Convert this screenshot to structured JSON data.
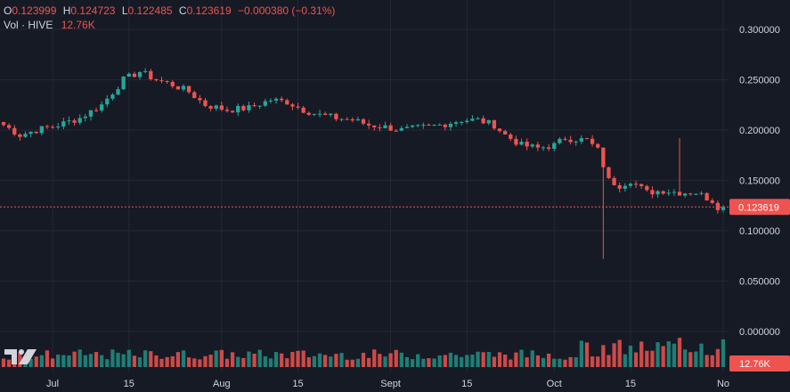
{
  "legend": {
    "open_label": "O",
    "open_value": "0.123999",
    "high_label": "H",
    "high_value": "0.124723",
    "low_label": "L",
    "low_value": "0.122485",
    "close_label": "C",
    "close_value": "0.123619",
    "change_value": "−0.000380 (−0.31%)",
    "volume_label": "Vol · HIVE",
    "volume_value": "12.76K"
  },
  "colors": {
    "background": "#161a25",
    "grid": "#242832",
    "up": "#26a69a",
    "down": "#ef5350",
    "up_volume": "#1f8a80",
    "down_volume": "#e0504d",
    "text": "#d1d4dc"
  },
  "logo_icon": "tradingview-logo-icon",
  "chart_data": {
    "type": "candlestick",
    "y_axis": {
      "ticks": [
        "0.300000",
        "0.250000",
        "0.200000",
        "0.150000",
        "0.100000",
        "0.050000",
        "0.000000"
      ],
      "tick_values": [
        0.3,
        0.25,
        0.2,
        0.15,
        0.1,
        0.05,
        0.0
      ],
      "ylim": [
        -0.03,
        0.32
      ]
    },
    "x_axis": {
      "ticks": [
        "Jul",
        "15",
        "Aug",
        "15",
        "Sept",
        "15",
        "Oct",
        "15",
        "No"
      ],
      "tick_index": [
        9,
        23,
        40,
        54,
        71,
        85,
        101,
        115,
        132
      ]
    },
    "last_price": {
      "value": 0.123619,
      "label": "0.123619"
    },
    "last_volume_label": "12.76K",
    "grid": true,
    "anchors": [
      [
        0,
        0.205
      ],
      [
        3,
        0.195
      ],
      [
        6,
        0.2
      ],
      [
        10,
        0.205
      ],
      [
        14,
        0.212
      ],
      [
        18,
        0.225
      ],
      [
        22,
        0.25
      ],
      [
        25,
        0.258
      ],
      [
        28,
        0.25
      ],
      [
        31,
        0.245
      ],
      [
        34,
        0.238
      ],
      [
        37,
        0.225
      ],
      [
        41,
        0.22
      ],
      [
        45,
        0.222
      ],
      [
        49,
        0.23
      ],
      [
        52,
        0.228
      ],
      [
        55,
        0.22
      ],
      [
        58,
        0.215
      ],
      [
        61,
        0.212
      ],
      [
        64,
        0.21
      ],
      [
        67,
        0.205
      ],
      [
        70,
        0.203
      ],
      [
        73,
        0.2
      ],
      [
        76,
        0.202
      ],
      [
        80,
        0.205
      ],
      [
        84,
        0.21
      ],
      [
        87,
        0.21
      ],
      [
        90,
        0.205
      ],
      [
        92,
        0.195
      ],
      [
        95,
        0.185
      ],
      [
        98,
        0.182
      ],
      [
        101,
        0.185
      ],
      [
        103,
        0.192
      ],
      [
        107,
        0.19
      ],
      [
        109,
        0.18
      ],
      [
        111,
        0.15
      ],
      [
        113,
        0.145
      ],
      [
        115,
        0.15
      ],
      [
        118,
        0.138
      ],
      [
        121,
        0.14
      ],
      [
        124,
        0.138
      ],
      [
        127,
        0.138
      ],
      [
        130,
        0.13
      ],
      [
        131,
        0.124
      ]
    ],
    "spikes": [
      {
        "index": 110,
        "low": 0.072
      },
      {
        "index": 124,
        "high": 0.192
      }
    ],
    "volume_max_note": "relative volume bars in lower pane"
  }
}
